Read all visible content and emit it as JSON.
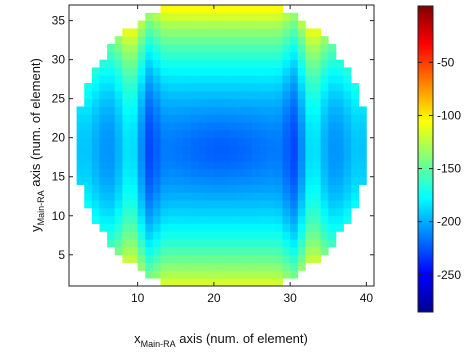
{
  "chart_data": {
    "type": "heatmap",
    "title": "",
    "xlabel": {
      "main": "x",
      "sub": "Main-RA",
      "rest": " axis (num. of element)"
    },
    "ylabel": {
      "main": "y",
      "sub": "Main-RA",
      "rest": " axis (num. of element)"
    },
    "xlim": [
      1,
      41
    ],
    "ylim": [
      1,
      37
    ],
    "x_ticks": [
      10,
      20,
      30,
      40
    ],
    "y_ticks": [
      5,
      10,
      15,
      20,
      25,
      30,
      35
    ],
    "grid": false,
    "colorbar": {
      "range": [
        -285,
        3
      ],
      "ticks": [
        -50,
        -100,
        -150,
        -200,
        -250
      ],
      "colormap": "jet",
      "colors": [
        "#00008f",
        "#0000ff",
        "#00ffff",
        "#ffff00",
        "#ff0000",
        "#800000"
      ]
    },
    "aperture": {
      "shape": "circle",
      "center": [
        21,
        19
      ],
      "radius": 19.3
    },
    "values_description": "Approximate values per element estimated from the color field; computed by the rendering script from aperture geometry"
  }
}
